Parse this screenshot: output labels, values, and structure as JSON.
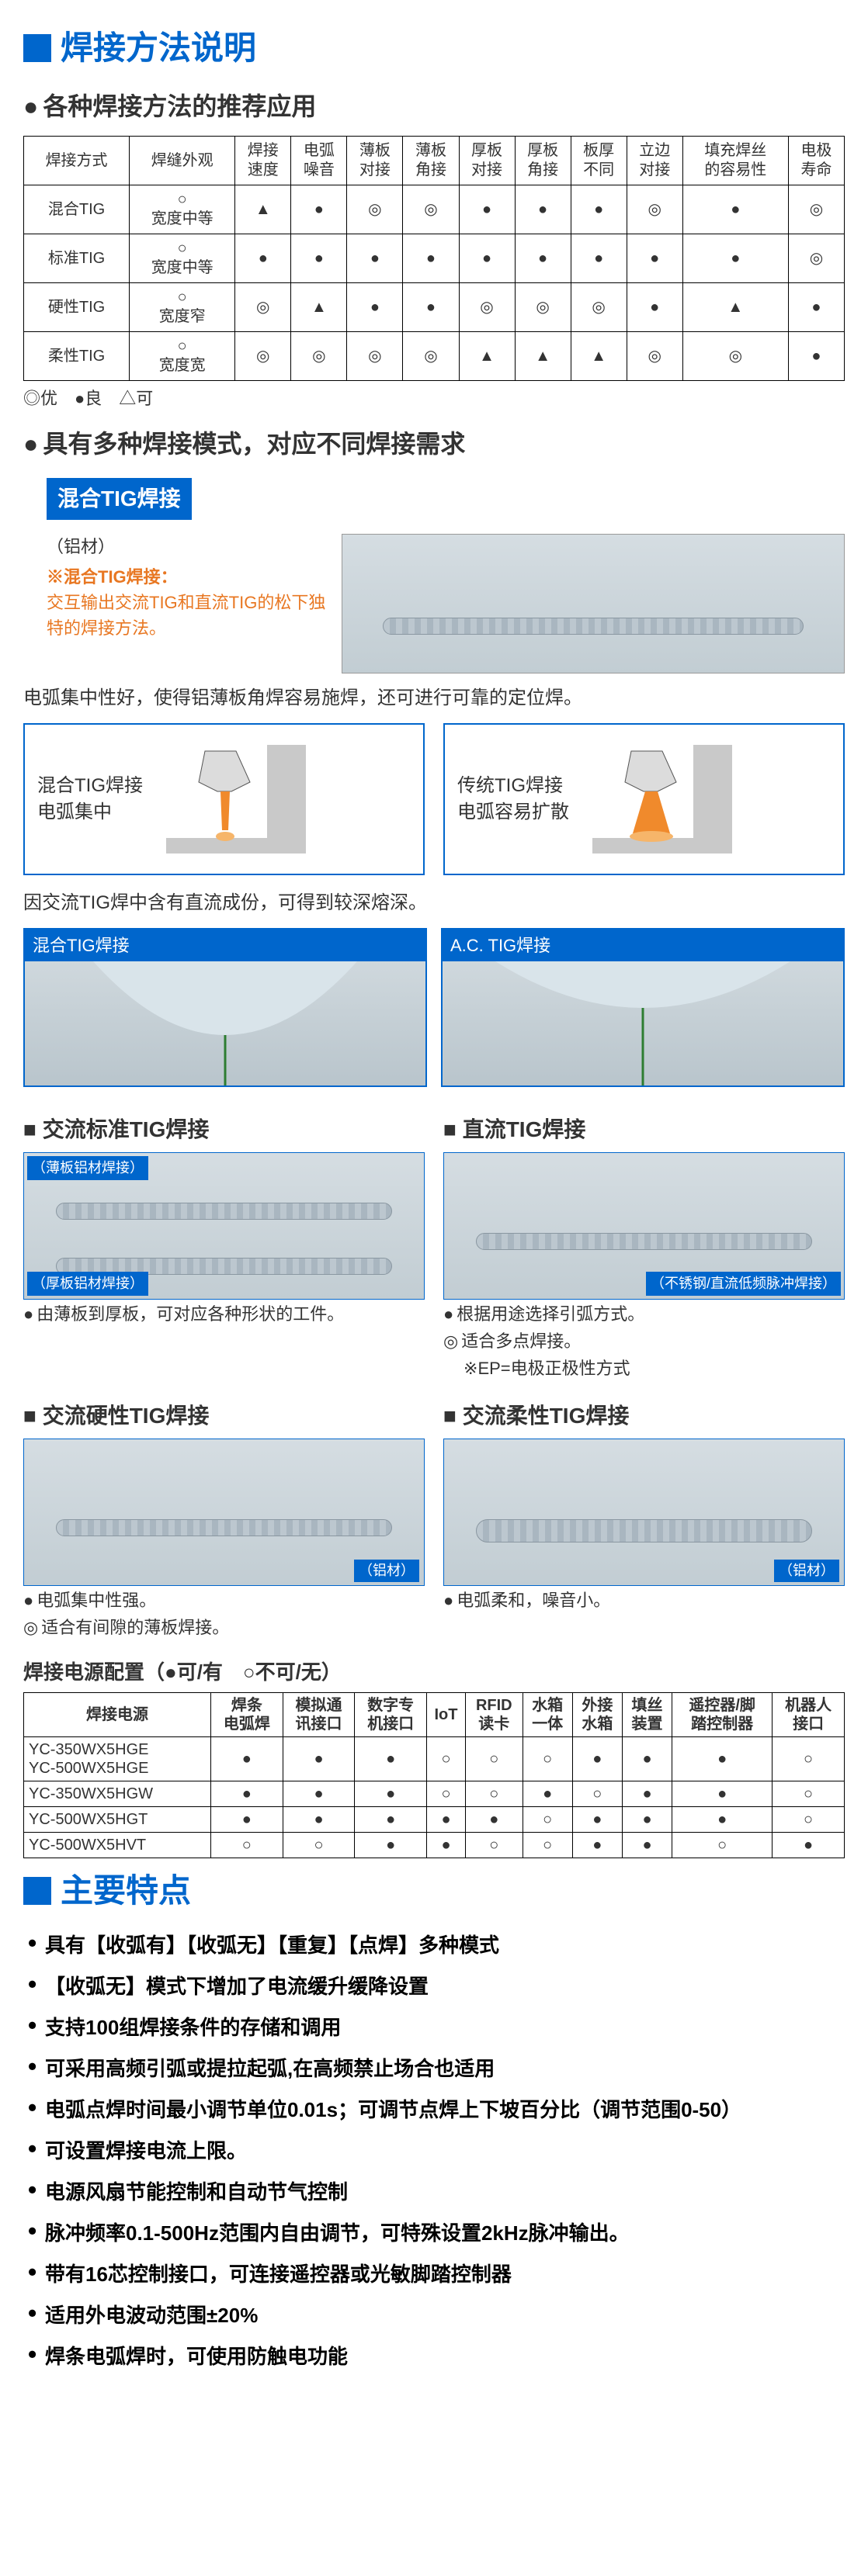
{
  "section1": {
    "title": "焊接方法说明",
    "sub1": "各种焊接方法的推荐应用",
    "table1": {
      "headers": [
        "焊接方式",
        "焊缝外观",
        "焊接\n速度",
        "电弧\n噪音",
        "薄板\n对接",
        "薄板\n角接",
        "厚板\n对接",
        "厚板\n角接",
        "板厚\n不同",
        "立边\n对接",
        "填充焊丝\n的容易性",
        "电极\n寿命"
      ],
      "rows": [
        [
          "混合TIG",
          "○\n宽度中等",
          "▲",
          "●",
          "◎",
          "◎",
          "●",
          "●",
          "●",
          "◎",
          "●",
          "◎"
        ],
        [
          "标准TIG",
          "○\n宽度中等",
          "●",
          "●",
          "●",
          "●",
          "●",
          "●",
          "●",
          "●",
          "●",
          "◎"
        ],
        [
          "硬性TIG",
          "○\n宽度窄",
          "◎",
          "▲",
          "●",
          "●",
          "◎",
          "◎",
          "◎",
          "●",
          "▲",
          "●"
        ],
        [
          "柔性TIG",
          "○\n宽度宽",
          "◎",
          "◎",
          "◎",
          "◎",
          "▲",
          "▲",
          "▲",
          "◎",
          "◎",
          "●"
        ]
      ],
      "legend": "◎优　●良　△可"
    },
    "sub2": "具有多种焊接模式，对应不同焊接需求",
    "mix": {
      "title": "混合TIG焊接",
      "material": "（铝材）",
      "noteTitle": "※混合TIG焊接：",
      "noteBody": "交互输出交流TIG和直流TIG的松下独特的焊接方法。"
    },
    "desc1": "电弧集中性好，使得铝薄板角焊容易施焊，还可进行可靠的定位焊。",
    "diag": {
      "left1": "混合TIG焊接",
      "left2": "电弧集中",
      "right1": "传统TIG焊接",
      "right2": "电弧容易扩散"
    },
    "desc2": "因交流TIG焊中含有直流成份，可得到较深熔深。",
    "pen": {
      "left": "混合TIG焊接",
      "right": "A.C. TIG焊接"
    },
    "types": {
      "t1": {
        "title": "交流标准TIG焊接",
        "l1": "（薄板铝材焊接）",
        "l2": "（厚板铝材焊接）",
        "b1": "由薄板到厚板，可对应各种形状的工件。"
      },
      "t2": {
        "title": "直流TIG焊接",
        "l1": "（不锈钢/直流低频脉冲焊接）",
        "b1": "根据用途选择引弧方式。",
        "b2": "适合多点焊接。",
        "hint": "EP=电极正极性方式"
      },
      "t3": {
        "title": "交流硬性TIG焊接",
        "mat": "（铝材）",
        "b1": "电弧集中性强。",
        "b2": "适合有间隙的薄板焊接。"
      },
      "t4": {
        "title": "交流柔性TIG焊接",
        "mat": "（铝材）",
        "b1": "电弧柔和，噪音小。"
      }
    },
    "cfgTitle": "焊接电源配置（●可/有　○不可/无）",
    "cfg": {
      "headers": [
        "焊接电源",
        "焊条\n电弧焊",
        "模拟通\n讯接口",
        "数字专\n机接口",
        "IoT",
        "RFID\n读卡",
        "水箱\n一体",
        "外接\n水箱",
        "填丝\n装置",
        "遥控器/脚\n踏控制器",
        "机器人\n接口"
      ],
      "rows": [
        [
          "YC-350WX5HGE\nYC-500WX5HGE",
          "●",
          "●",
          "●",
          "○",
          "○",
          "○",
          "●",
          "●",
          "●",
          "○"
        ],
        [
          "YC-350WX5HGW",
          "●",
          "●",
          "●",
          "○",
          "○",
          "●",
          "○",
          "●",
          "●",
          "○"
        ],
        [
          "YC-500WX5HGT",
          "●",
          "●",
          "●",
          "●",
          "●",
          "○",
          "●",
          "●",
          "●",
          "○"
        ],
        [
          "YC-500WX5HVT",
          "○",
          "○",
          "●",
          "●",
          "○",
          "○",
          "●",
          "●",
          "○",
          "●"
        ]
      ]
    }
  },
  "section2": {
    "title": "主要特点",
    "items": [
      "具有【收弧有】【收弧无】【重复】【点焊】多种模式",
      "【收弧无】模式下增加了电流缓升缓降设置",
      "支持100组焊接条件的存储和调用",
      "可采用高频引弧或提拉起弧,在高频禁止场合也适用",
      "电弧点焊时间最小调节单位0.01s；可调节点焊上下坡百分比（调节范围0-50）",
      "可设置焊接电流上限。",
      "电源风扇节能控制和自动节气控制",
      "脉冲频率0.1-500Hz范围内自由调节，可特殊设置2kHz脉冲输出。",
      "带有16芯控制接口，可连接遥控器或光敏脚踏控制器",
      "适用外电波动范围±20%",
      "焊条电弧焊时，可使用防触电功能"
    ]
  },
  "colors": {
    "accent": "#0066cc",
    "orange": "#e87722"
  }
}
